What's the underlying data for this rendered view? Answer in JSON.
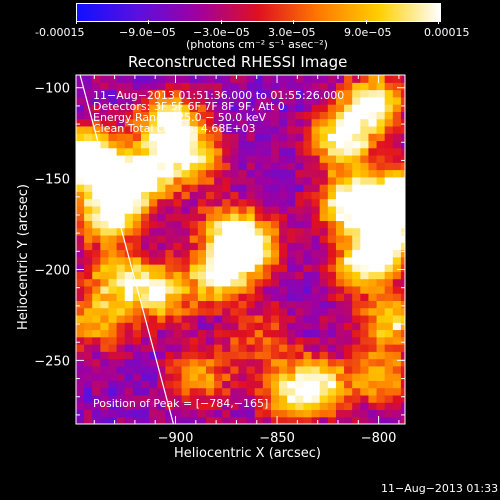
{
  "colorbar": {
    "ticks": [
      "-0.00015",
      "−9.0e−05",
      "−3.0e−05",
      "3.0e−05",
      "9.0e−05",
      "0.00015"
    ],
    "unit_label": "(photons cm⁻² s⁻¹ asec⁻²)",
    "stops": [
      "#1010ff",
      "#5a10e0",
      "#a000a0",
      "#e01020",
      "#ff7a00",
      "#ffd000",
      "#ffffff"
    ]
  },
  "chart_data": {
    "type": "heatmap",
    "title": "Reconstructed RHESSI Image",
    "xlabel": "Heliocentric X (arcsec)",
    "ylabel": "Heliocentric Y (arcsec)",
    "xlim": [
      -949,
      -787
    ],
    "ylim": [
      -285,
      -93
    ],
    "x_ticks": [
      -900,
      -850,
      -800
    ],
    "y_ticks": [
      -100,
      -150,
      -200,
      -250
    ],
    "x_tick_labels": [
      "−900",
      "−850",
      "−800"
    ],
    "y_tick_labels": [
      "−100",
      "−150",
      "−200",
      "−250"
    ],
    "annotations": [
      "11−Aug−2013 01:51:36.000 to 01:55:26.000",
      "Detectors: 3F 5F 6F 7F 8F 9F, Att 0",
      "Energy Range: 25.0 − 50.0 keV",
      "Clean    Total counts: 4.68E+03"
    ],
    "peak_label": "Position of Peak = [−784,−165]",
    "peak": [
      -784,
      -165
    ],
    "colormap": [
      "#1010ff",
      "#5a10e0",
      "#a000a0",
      "#e01020",
      "#ff7a00",
      "#ffd000",
      "#ffffff"
    ],
    "blobs": [
      {
        "x": -948,
        "y": -140,
        "v": 0.95
      },
      {
        "x": -935,
        "y": -170,
        "v": 0.8
      },
      {
        "x": -920,
        "y": -150,
        "v": 0.85
      },
      {
        "x": -905,
        "y": -120,
        "v": 0.7
      },
      {
        "x": -895,
        "y": -140,
        "v": 0.65
      },
      {
        "x": -875,
        "y": -180,
        "v": 0.55
      },
      {
        "x": -865,
        "y": -190,
        "v": 0.6
      },
      {
        "x": -880,
        "y": -205,
        "v": 0.65
      },
      {
        "x": -910,
        "y": -215,
        "v": 0.6
      },
      {
        "x": -940,
        "y": -230,
        "v": 0.5
      },
      {
        "x": -930,
        "y": -205,
        "v": 0.55
      },
      {
        "x": -820,
        "y": -130,
        "v": 0.75
      },
      {
        "x": -805,
        "y": -110,
        "v": 0.7
      },
      {
        "x": -790,
        "y": -160,
        "v": 0.8
      },
      {
        "x": -815,
        "y": -165,
        "v": 0.85
      },
      {
        "x": -798,
        "y": -185,
        "v": 0.75
      },
      {
        "x": -810,
        "y": -200,
        "v": 0.6
      },
      {
        "x": -795,
        "y": -230,
        "v": 0.55
      },
      {
        "x": -830,
        "y": -265,
        "v": 0.55
      },
      {
        "x": -845,
        "y": -270,
        "v": 0.5
      },
      {
        "x": -860,
        "y": -240,
        "v": 0.35
      },
      {
        "x": -890,
        "y": -260,
        "v": 0.45
      },
      {
        "x": -800,
        "y": -260,
        "v": 0.45
      }
    ],
    "grid": false
  },
  "footer": {
    "timestamp": "11−Aug−2013 01:33"
  }
}
